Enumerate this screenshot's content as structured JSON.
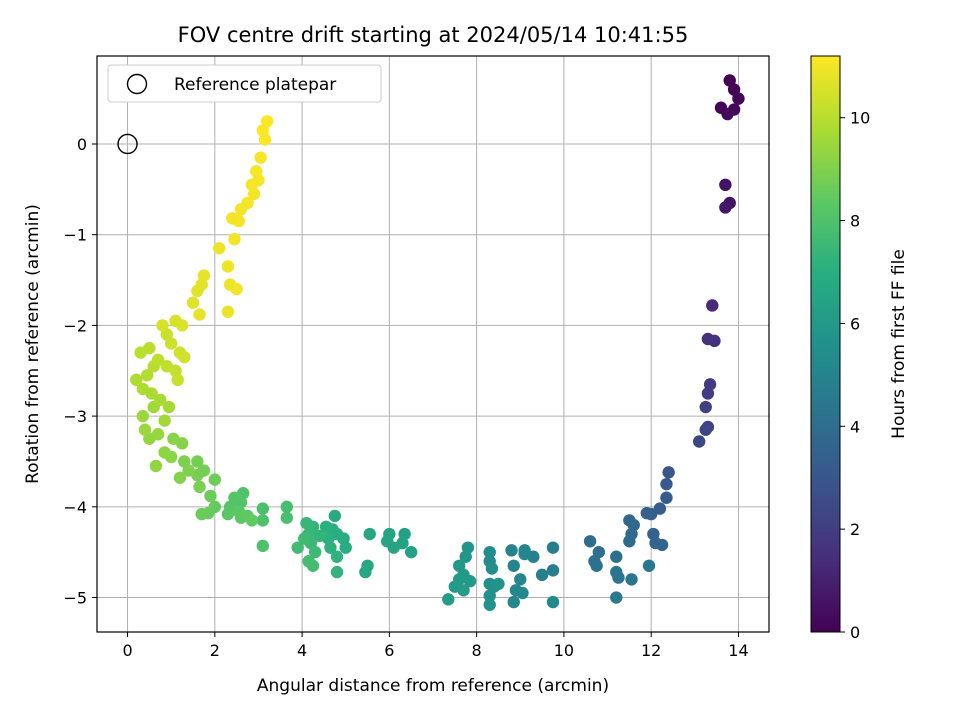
{
  "chart_data": {
    "type": "scatter",
    "title": "FOV centre drift starting at 2024/05/14 10:41:55",
    "xlabel": "Angular distance from reference (arcmin)",
    "ylabel": "Rotation from reference (arcmin)",
    "xlim": [
      -0.7,
      14.7
    ],
    "ylim": [
      -5.38,
      0.97
    ],
    "xticks": [
      0,
      2,
      4,
      6,
      8,
      10,
      12,
      14
    ],
    "yticks": [
      0,
      -1,
      -2,
      -3,
      -4,
      -5
    ],
    "grid": true,
    "legend": {
      "placement": "top-left",
      "entries": [
        "Reference platepar"
      ]
    },
    "reference_point": {
      "name": "Reference platepar",
      "x": 0,
      "y": 0
    },
    "colorbar": {
      "label": "Hours from first FF file",
      "range": [
        0,
        11.2
      ],
      "ticks": [
        0,
        2,
        4,
        6,
        8,
        10
      ],
      "colormap": "viridis"
    },
    "series": [
      {
        "columns": [
          "x",
          "y",
          "hours"
        ],
        "points": [
          [
            13.8,
            0.7,
            0.0
          ],
          [
            13.9,
            0.6,
            0.05
          ],
          [
            14.0,
            0.5,
            0.1
          ],
          [
            13.6,
            0.4,
            0.15
          ],
          [
            13.9,
            0.38,
            0.2
          ],
          [
            13.75,
            0.33,
            0.25
          ],
          [
            13.7,
            -0.45,
            0.5
          ],
          [
            13.8,
            -0.65,
            0.6
          ],
          [
            13.7,
            -0.7,
            0.7
          ],
          [
            13.4,
            -1.78,
            1.3
          ],
          [
            13.3,
            -2.15,
            1.5
          ],
          [
            13.45,
            -2.17,
            1.6
          ],
          [
            13.35,
            -2.65,
            1.9
          ],
          [
            13.3,
            -2.75,
            2.0
          ],
          [
            13.25,
            -2.9,
            2.1
          ],
          [
            13.3,
            -3.12,
            2.2
          ],
          [
            13.25,
            -3.15,
            2.3
          ],
          [
            13.1,
            -3.28,
            2.4
          ],
          [
            12.4,
            -3.62,
            3.0
          ],
          [
            12.35,
            -3.75,
            3.1
          ],
          [
            12.35,
            -3.9,
            3.2
          ],
          [
            12.2,
            -4.02,
            3.3
          ],
          [
            12.0,
            -4.08,
            3.4
          ],
          [
            11.9,
            -4.07,
            3.45
          ],
          [
            12.05,
            -4.3,
            3.5
          ],
          [
            12.1,
            -4.4,
            3.6
          ],
          [
            12.25,
            -4.42,
            3.65
          ],
          [
            11.5,
            -4.15,
            3.7
          ],
          [
            11.6,
            -4.2,
            3.8
          ],
          [
            11.55,
            -4.3,
            3.85
          ],
          [
            11.5,
            -4.38,
            3.9
          ],
          [
            10.6,
            -4.38,
            4.0
          ],
          [
            10.8,
            -4.5,
            4.05
          ],
          [
            11.2,
            -4.55,
            4.1
          ],
          [
            10.7,
            -4.6,
            4.15
          ],
          [
            10.75,
            -4.65,
            4.2
          ],
          [
            11.2,
            -4.72,
            4.3
          ],
          [
            11.25,
            -4.78,
            4.35
          ],
          [
            11.55,
            -4.8,
            4.4
          ],
          [
            11.95,
            -4.65,
            4.45
          ],
          [
            11.2,
            -5.0,
            4.5
          ],
          [
            9.75,
            -4.45,
            4.7
          ],
          [
            9.75,
            -4.7,
            4.75
          ],
          [
            9.5,
            -4.75,
            4.8
          ],
          [
            9.3,
            -4.55,
            4.85
          ],
          [
            9.1,
            -4.48,
            4.9
          ],
          [
            8.8,
            -4.48,
            4.95
          ],
          [
            9.1,
            -4.52,
            5.0
          ],
          [
            8.85,
            -4.65,
            5.05
          ],
          [
            9.0,
            -4.8,
            5.1
          ],
          [
            8.9,
            -4.92,
            5.15
          ],
          [
            8.85,
            -5.05,
            5.2
          ],
          [
            9.05,
            -4.95,
            5.25
          ],
          [
            9.75,
            -5.05,
            5.3
          ],
          [
            8.3,
            -4.5,
            5.4
          ],
          [
            8.3,
            -4.6,
            5.45
          ],
          [
            8.35,
            -4.68,
            5.5
          ],
          [
            8.3,
            -4.85,
            5.55
          ],
          [
            8.4,
            -4.88,
            5.6
          ],
          [
            8.3,
            -4.98,
            5.65
          ],
          [
            8.3,
            -5.08,
            5.7
          ],
          [
            8.5,
            -4.85,
            5.75
          ],
          [
            7.8,
            -4.45,
            5.8
          ],
          [
            7.75,
            -4.55,
            5.85
          ],
          [
            7.6,
            -4.65,
            5.9
          ],
          [
            7.7,
            -4.75,
            5.95
          ],
          [
            7.6,
            -4.8,
            6.0
          ],
          [
            7.85,
            -4.82,
            6.05
          ],
          [
            7.5,
            -4.88,
            6.1
          ],
          [
            7.7,
            -4.92,
            6.15
          ],
          [
            7.35,
            -5.02,
            6.2
          ],
          [
            6.35,
            -4.3,
            6.3
          ],
          [
            6.5,
            -4.5,
            6.35
          ],
          [
            6.3,
            -4.4,
            6.4
          ],
          [
            6.0,
            -4.3,
            6.45
          ],
          [
            6.1,
            -4.45,
            6.5
          ],
          [
            5.95,
            -4.38,
            6.55
          ],
          [
            5.55,
            -4.3,
            6.6
          ],
          [
            5.5,
            -4.65,
            6.65
          ],
          [
            5.45,
            -4.72,
            6.7
          ],
          [
            4.75,
            -4.1,
            6.8
          ],
          [
            4.95,
            -4.35,
            6.85
          ],
          [
            5.0,
            -4.45,
            6.9
          ],
          [
            4.8,
            -4.3,
            6.95
          ],
          [
            4.7,
            -4.25,
            7.0
          ],
          [
            4.55,
            -4.22,
            7.05
          ],
          [
            4.6,
            -4.35,
            7.1
          ],
          [
            4.65,
            -4.45,
            7.15
          ],
          [
            4.8,
            -4.55,
            7.2
          ],
          [
            4.8,
            -4.72,
            7.25
          ],
          [
            4.4,
            -4.32,
            7.3
          ],
          [
            4.25,
            -4.22,
            7.35
          ],
          [
            4.1,
            -4.18,
            7.4
          ],
          [
            4.15,
            -4.3,
            7.45
          ],
          [
            4.2,
            -4.4,
            7.5
          ],
          [
            4.3,
            -4.5,
            7.55
          ],
          [
            4.05,
            -4.35,
            7.6
          ],
          [
            3.9,
            -4.45,
            7.65
          ],
          [
            4.15,
            -4.6,
            7.7
          ],
          [
            4.25,
            -4.65,
            7.75
          ],
          [
            3.65,
            -4.0,
            7.8
          ],
          [
            3.65,
            -4.12,
            7.85
          ],
          [
            3.1,
            -4.02,
            7.9
          ],
          [
            3.1,
            -4.15,
            7.95
          ],
          [
            3.1,
            -4.43,
            8.0
          ],
          [
            2.65,
            -3.85,
            8.05
          ],
          [
            2.6,
            -3.95,
            8.1
          ],
          [
            2.45,
            -3.9,
            8.15
          ],
          [
            2.35,
            -4.0,
            8.2
          ],
          [
            2.3,
            -4.08,
            8.25
          ],
          [
            2.55,
            -4.05,
            8.3
          ],
          [
            2.6,
            -4.12,
            8.35
          ],
          [
            2.75,
            -4.1,
            8.4
          ],
          [
            2.85,
            -4.15,
            8.45
          ],
          [
            2.0,
            -4.0,
            8.5
          ],
          [
            1.85,
            -4.07,
            8.55
          ],
          [
            1.7,
            -4.08,
            8.6
          ],
          [
            1.9,
            -3.88,
            8.65
          ],
          [
            2.0,
            -3.7,
            8.7
          ],
          [
            1.75,
            -3.6,
            8.75
          ],
          [
            1.6,
            -3.5,
            8.8
          ],
          [
            1.6,
            -3.65,
            8.85
          ],
          [
            1.65,
            -3.78,
            8.9
          ],
          [
            1.3,
            -3.5,
            8.95
          ],
          [
            1.4,
            -3.6,
            9.0
          ],
          [
            1.2,
            -3.68,
            9.05
          ],
          [
            1.25,
            -3.3,
            9.1
          ],
          [
            1.05,
            -3.25,
            9.15
          ],
          [
            1.0,
            -3.45,
            9.2
          ],
          [
            0.85,
            -3.4,
            9.25
          ],
          [
            0.65,
            -3.55,
            9.3
          ],
          [
            0.5,
            -3.25,
            9.35
          ],
          [
            0.7,
            -3.2,
            9.4
          ],
          [
            0.4,
            -3.15,
            9.45
          ],
          [
            0.35,
            -3.0,
            9.5
          ],
          [
            0.6,
            -2.9,
            9.55
          ],
          [
            0.85,
            -3.05,
            9.6
          ],
          [
            0.95,
            -2.9,
            9.65
          ],
          [
            0.75,
            -2.82,
            9.7
          ],
          [
            0.55,
            -2.75,
            9.75
          ],
          [
            0.35,
            -2.7,
            9.8
          ],
          [
            0.2,
            -2.6,
            9.85
          ],
          [
            0.45,
            -2.55,
            9.9
          ],
          [
            0.6,
            -2.45,
            9.95
          ],
          [
            0.3,
            -2.3,
            10.0
          ],
          [
            0.5,
            -2.25,
            10.05
          ],
          [
            0.7,
            -2.38,
            10.1
          ],
          [
            0.9,
            -2.45,
            10.15
          ],
          [
            1.1,
            -2.5,
            10.2
          ],
          [
            1.15,
            -2.6,
            10.25
          ],
          [
            0.9,
            -2.1,
            10.3
          ],
          [
            1.0,
            -2.2,
            10.35
          ],
          [
            1.2,
            -2.3,
            10.4
          ],
          [
            1.3,
            -2.35,
            10.45
          ],
          [
            0.8,
            -2.0,
            10.5
          ],
          [
            1.1,
            -1.95,
            10.55
          ],
          [
            1.25,
            -2.0,
            10.6
          ],
          [
            1.5,
            -1.75,
            10.65
          ],
          [
            1.6,
            -1.62,
            10.7
          ],
          [
            1.7,
            -1.55,
            10.75
          ],
          [
            1.75,
            -1.45,
            10.8
          ],
          [
            1.65,
            -1.88,
            10.82
          ],
          [
            2.3,
            -1.85,
            10.85
          ],
          [
            2.1,
            -1.15,
            10.9
          ],
          [
            2.3,
            -1.35,
            10.92
          ],
          [
            2.35,
            -1.55,
            10.95
          ],
          [
            2.5,
            -1.6,
            10.97
          ],
          [
            2.45,
            -1.05,
            11.0
          ],
          [
            2.55,
            -0.85,
            11.02
          ],
          [
            2.75,
            -0.65,
            11.05
          ],
          [
            2.85,
            -0.45,
            11.07
          ],
          [
            2.95,
            -0.3,
            11.1
          ],
          [
            3.05,
            -0.15,
            11.12
          ],
          [
            3.15,
            0.05,
            11.15
          ],
          [
            3.2,
            0.25,
            11.2
          ],
          [
            2.4,
            -0.82,
            11.0
          ],
          [
            2.6,
            -0.72,
            11.02
          ],
          [
            2.9,
            -0.55,
            11.05
          ],
          [
            3.0,
            -0.4,
            11.08
          ],
          [
            3.1,
            0.15,
            11.15
          ]
        ]
      }
    ]
  }
}
